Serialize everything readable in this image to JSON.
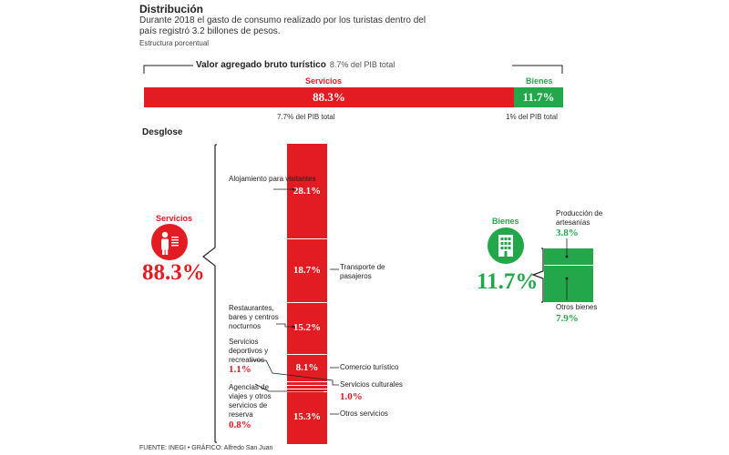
{
  "header": {
    "title": "Distribución",
    "subtitle": "Durante 2018 el gasto de consumo realizado por los turistas dentro del país registró 3.2 billones de pesos.",
    "note": "Estructura porcentual"
  },
  "vab": {
    "label": "Valor agregado bruto turístico",
    "pib": "8.7% del PIB total",
    "servicios_label": "Servicios",
    "servicios_value": "88.3%",
    "servicios_pib": "7.7% del PIB total",
    "bienes_label": "Bienes",
    "bienes_value": "11.7%",
    "bienes_pib": "1% del PIB total"
  },
  "desglose": {
    "title": "Desglose",
    "servicios_label": "Servicios",
    "servicios_value": "88.3%",
    "bienes_label": "Bienes",
    "bienes_value": "11.7%"
  },
  "colors": {
    "red": "#e31b23",
    "green": "#22a84a"
  },
  "icons": [
    "person-icon",
    "building-icon"
  ],
  "chart_data": [
    {
      "type": "bar",
      "title": "Valor agregado bruto turístico",
      "categories": [
        "Servicios",
        "Bienes"
      ],
      "values": [
        88.3,
        11.7
      ]
    },
    {
      "type": "bar",
      "title": "Servicios",
      "categories": [
        "Alojamiento para visitantes",
        "Transporte de pasajeros",
        "Restaurantes, bares y centros nocturnos",
        "Comercio turístico",
        "Servicios deportivos y recreativos",
        "Servicios culturales",
        "Agencias de viajes y otros servicios de reserva",
        "Otros servicios"
      ],
      "values": [
        28.1,
        18.7,
        15.2,
        8.1,
        1.1,
        1.0,
        0.8,
        15.3
      ],
      "labels": [
        "28.1%",
        "18.7%",
        "15.2%",
        "8.1%",
        "1.1%",
        "1.0%",
        "0.8%",
        "15.3%"
      ]
    },
    {
      "type": "bar",
      "title": "Bienes",
      "categories": [
        "Producción de artesanías",
        "Otros bienes"
      ],
      "values": [
        3.8,
        7.9
      ],
      "labels": [
        "3.8%",
        "7.9%"
      ]
    }
  ],
  "footer": "FUENTE: INEGI • GRÁFICO: Alfredo San Juan"
}
